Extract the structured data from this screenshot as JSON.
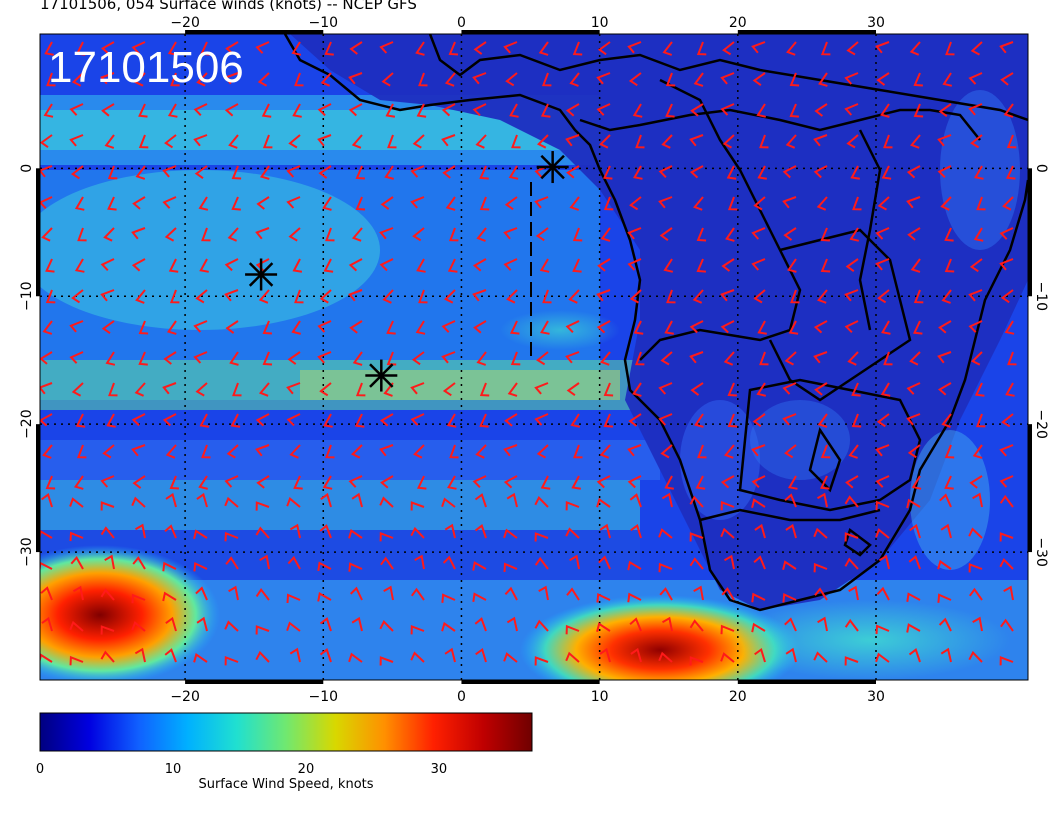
{
  "header": {
    "title": "17101506, 054 Surface winds (knots) -- NCEP GFS",
    "stamp": "17101506"
  },
  "map": {
    "lon_ticks": [
      "−20",
      "−10",
      "0",
      "10",
      "20",
      "30"
    ],
    "lon_values": [
      -20,
      -10,
      0,
      10,
      20,
      30
    ],
    "lat_ticks": [
      "0",
      "−10",
      "−20",
      "−30"
    ],
    "lat_values": [
      0,
      -10,
      -20,
      -30
    ],
    "lon_range": [
      -30.5,
      41
    ],
    "lat_range": [
      -40,
      10.5
    ],
    "colors": {
      "barb": "#ff1a1a",
      "coast": "#000000",
      "marker": "#000000"
    },
    "markers": [
      {
        "name": "storm-marker-1",
        "lon": -14.5,
        "lat": -8.3
      },
      {
        "name": "storm-marker-2",
        "lon": -5.8,
        "lat": -16.2
      },
      {
        "name": "storm-marker-3",
        "lon": 6.6,
        "lat": 0.1
      }
    ]
  },
  "colorbar": {
    "label": "Surface Wind Speed, knots",
    "ticks": [
      "0",
      "10",
      "20",
      "30"
    ],
    "tick_values": [
      0,
      10,
      20,
      30
    ],
    "range": [
      0,
      37
    ],
    "stops": [
      "#000080",
      "#0000e0",
      "#1060ff",
      "#00b0ff",
      "#20e0d0",
      "#70e870",
      "#d8d800",
      "#ff9000",
      "#ff2000",
      "#c00000",
      "#700000"
    ]
  },
  "chart_data": {
    "type": "heatmap",
    "title": "17101506, 054 Surface winds (knots) -- NCEP GFS",
    "xlabel": "",
    "ylabel": "",
    "xlim": [
      -30.5,
      41
    ],
    "ylim": [
      -40,
      10.5
    ],
    "colorbar_label": "Surface Wind Speed, knots",
    "colorbar_range": [
      0,
      37
    ],
    "grid": true
  }
}
